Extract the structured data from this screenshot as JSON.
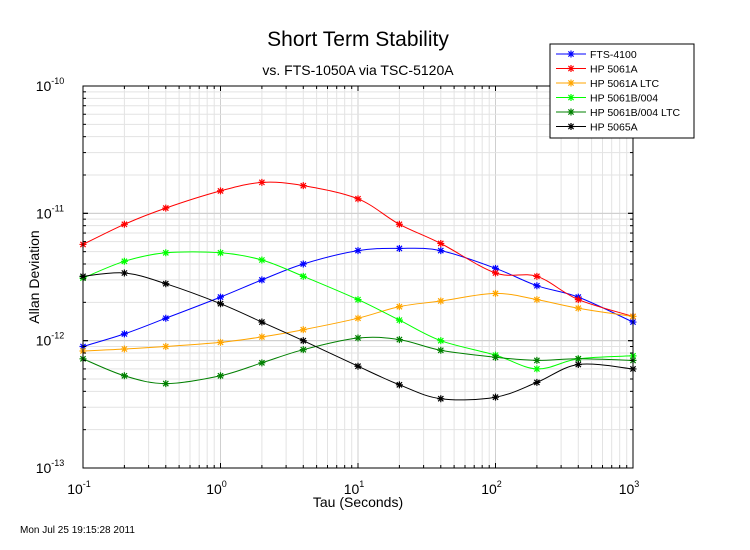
{
  "chart_data": {
    "type": "line",
    "title": "Short Term Stability",
    "subtitle": "vs. FTS-1050A via TSC-5120A",
    "xlabel": "Tau (Seconds)",
    "ylabel": "Allan Deviation",
    "xscale": "log",
    "yscale": "log",
    "xlim": [
      0.1,
      1000
    ],
    "ylim": [
      1e-13,
      1e-10
    ],
    "grid": true,
    "legend_position": "top-right",
    "x_ticks": [
      {
        "base": "10",
        "exp": "-1"
      },
      {
        "base": "10",
        "exp": "0"
      },
      {
        "base": "10",
        "exp": "1"
      },
      {
        "base": "10",
        "exp": "2"
      },
      {
        "base": "10",
        "exp": "3"
      }
    ],
    "y_ticks": [
      {
        "base": "10",
        "exp": "-13"
      },
      {
        "base": "10",
        "exp": "-12"
      },
      {
        "base": "10",
        "exp": "-11"
      },
      {
        "base": "10",
        "exp": "-10"
      }
    ],
    "x": [
      0.1,
      0.2,
      0.4,
      1,
      2,
      4,
      10,
      20,
      40,
      100,
      200,
      400,
      1000
    ],
    "series": [
      {
        "name": "FTS-4100",
        "color": "#0000ff",
        "values": [
          9e-13,
          1.13e-12,
          1.5e-12,
          2.2e-12,
          3e-12,
          4e-12,
          5.1e-12,
          5.3e-12,
          5.1e-12,
          3.7e-12,
          2.7e-12,
          2.2e-12,
          1.4e-12
        ]
      },
      {
        "name": "HP 5061A",
        "color": "#ff0000",
        "values": [
          5.7e-12,
          8.2e-12,
          1.1e-11,
          1.5e-11,
          1.75e-11,
          1.65e-11,
          1.3e-11,
          8.2e-12,
          5.8e-12,
          3.4e-12,
          3.2e-12,
          2.1e-12,
          1.55e-12
        ]
      },
      {
        "name": "HP 5061A LTC",
        "color": "#ffa500",
        "values": [
          8.3e-13,
          8.6e-13,
          9e-13,
          9.7e-13,
          1.07e-12,
          1.22e-12,
          1.5e-12,
          1.85e-12,
          2.05e-12,
          2.35e-12,
          2.1e-12,
          1.8e-12,
          1.55e-12
        ]
      },
      {
        "name": "HP 5061B/004",
        "color": "#00ff00",
        "values": [
          3.1e-12,
          4.2e-12,
          4.9e-12,
          4.9e-12,
          4.3e-12,
          3.2e-12,
          2.1e-12,
          1.45e-12,
          1e-12,
          7.7e-13,
          6e-13,
          7.2e-13,
          7.6e-13
        ]
      },
      {
        "name": "HP 5061B/004 LTC",
        "color": "#008000",
        "values": [
          7.2e-13,
          5.3e-13,
          4.6e-13,
          5.3e-13,
          6.7e-13,
          8.5e-13,
          1.05e-12,
          1.02e-12,
          8.4e-13,
          7.4e-13,
          7e-13,
          7.2e-13,
          7e-13
        ]
      },
      {
        "name": "HP 5065A",
        "color": "#000000",
        "values": [
          3.2e-12,
          3.4e-12,
          2.8e-12,
          1.95e-12,
          1.4e-12,
          1e-12,
          6.3e-13,
          4.5e-13,
          3.5e-13,
          3.6e-13,
          4.7e-13,
          6.5e-13,
          6e-13
        ]
      }
    ]
  },
  "footer": {
    "timestamp": "Mon Jul 25 19:15:28 2011"
  }
}
